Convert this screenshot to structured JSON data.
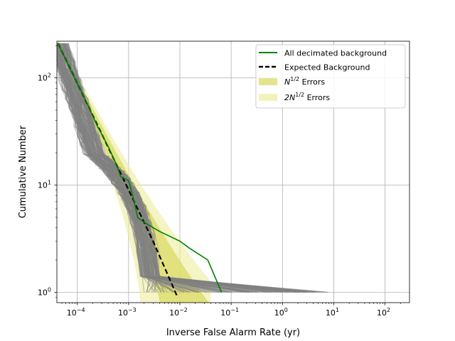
{
  "chart_data": {
    "type": "line",
    "title": "",
    "xlabel": "Inverse False Alarm Rate (yr)",
    "ylabel": "Cumulative Number",
    "xscale": "log",
    "yscale": "log",
    "xlim": [
      4e-05,
      300
    ],
    "ylim": [
      0.8,
      220
    ],
    "grid": true,
    "legend_position": "top-right",
    "x_ticks": [
      {
        "value": 0.0001,
        "base": "10",
        "exp": "−4"
      },
      {
        "value": 0.001,
        "base": "10",
        "exp": "−3"
      },
      {
        "value": 0.01,
        "base": "10",
        "exp": "−2"
      },
      {
        "value": 0.1,
        "base": "10",
        "exp": "−1"
      },
      {
        "value": 1,
        "base": "10",
        "exp": "0"
      },
      {
        "value": 10,
        "base": "10",
        "exp": "1"
      },
      {
        "value": 100,
        "base": "10",
        "exp": "2"
      }
    ],
    "y_ticks": [
      {
        "value": 1,
        "base": "10",
        "exp": "0"
      },
      {
        "value": 10,
        "base": "10",
        "exp": "1"
      },
      {
        "value": 100,
        "base": "10",
        "exp": "2"
      }
    ],
    "colors": {
      "background_lines": "#808080",
      "decimated": "#008000",
      "expected": "#000000",
      "err1": "#d8d860",
      "err2": "#ecec9c"
    },
    "legend": [
      {
        "label": "All decimated background",
        "style": "green-line"
      },
      {
        "label": "Expected Background",
        "style": "dashed-black"
      },
      {
        "label_pre": "N",
        "label_sup": "1/2",
        "label_post": " Errors",
        "style": "err1"
      },
      {
        "label_pre": "2N",
        "label_sup": "1/2",
        "label_post": " Errors",
        "style": "err2"
      }
    ],
    "series": [
      {
        "name": "All decimated background",
        "x": [
          4.2e-05,
          8e-05,
          0.00015,
          0.00025,
          0.0004,
          0.0006,
          0.0007,
          0.001,
          0.0012,
          0.0015,
          0.002,
          0.004,
          0.01,
          0.015,
          0.035,
          0.065
        ],
        "y": [
          210,
          110,
          60,
          35,
          23,
          15,
          12,
          11,
          8,
          5,
          4.5,
          3.7,
          3,
          2.6,
          2,
          1
        ]
      },
      {
        "name": "Expected Background",
        "x": [
          4.2e-05,
          0.0001,
          0.0003,
          0.001,
          0.003,
          0.009
        ],
        "y": [
          210,
          89,
          30,
          9,
          3,
          0.9
        ]
      }
    ]
  }
}
